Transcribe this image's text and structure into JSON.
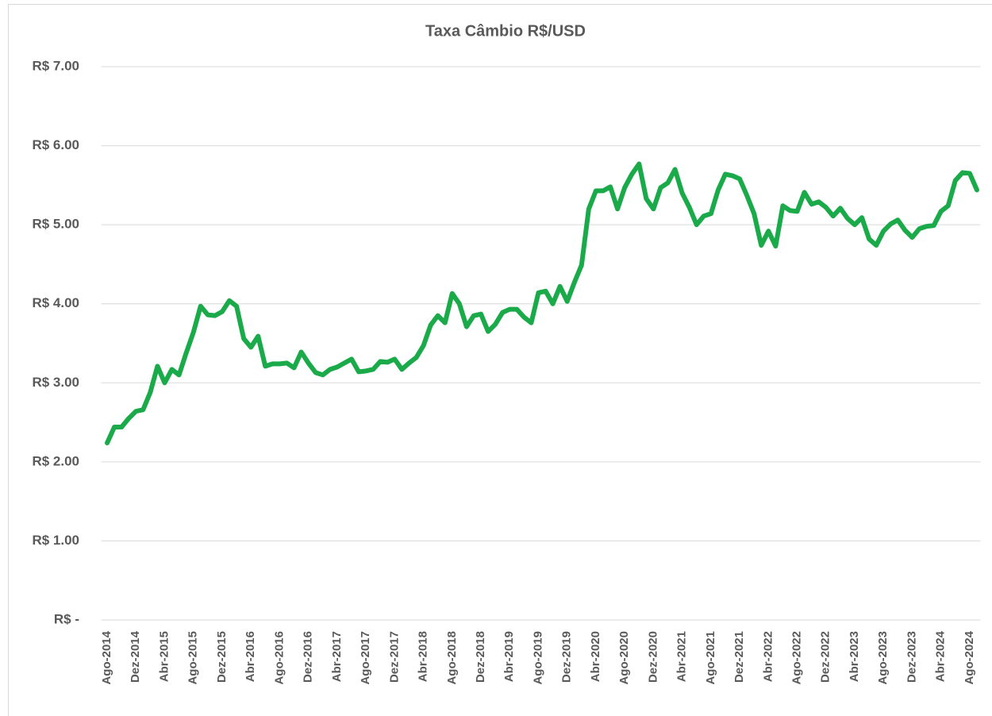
{
  "chart_data": {
    "type": "line",
    "title": "Taxa Câmbio R$/USD",
    "categories": [
      "Ago-2014",
      null,
      null,
      null,
      "Dez-2014",
      null,
      null,
      null,
      "Abr-2015",
      null,
      null,
      null,
      "Ago-2015",
      null,
      null,
      null,
      "Dez-2015",
      null,
      null,
      null,
      "Abr-2016",
      null,
      null,
      null,
      "Ago-2016",
      null,
      null,
      null,
      "Dez-2016",
      null,
      null,
      null,
      "Abr-2017",
      null,
      null,
      null,
      "Ago-2017",
      null,
      null,
      null,
      "Dez-2017",
      null,
      null,
      null,
      "Abr-2018",
      null,
      null,
      null,
      "Ago-2018",
      null,
      null,
      null,
      "Dez-2018",
      null,
      null,
      null,
      "Abr-2019",
      null,
      null,
      null,
      "Ago-2019",
      null,
      null,
      null,
      "Dez-2019",
      null,
      null,
      null,
      "Abr-2020",
      null,
      null,
      null,
      "Ago-2020",
      null,
      null,
      null,
      "Dez-2020",
      null,
      null,
      null,
      "Abr-2021",
      null,
      null,
      null,
      "Ago-2021",
      null,
      null,
      null,
      "Dez-2021",
      null,
      null,
      null,
      "Abr-2022",
      null,
      null,
      null,
      "Ago-2022",
      null,
      null,
      null,
      "Dez-2022",
      null,
      null,
      null,
      "Abr-2023",
      null,
      null,
      null,
      "Ago-2023",
      null,
      null,
      null,
      "Dez-2023",
      null,
      null,
      null,
      "Abr-2024",
      null,
      null,
      null,
      "Ago-2024",
      null
    ],
    "values": [
      2.24,
      2.44,
      2.44,
      2.55,
      2.64,
      2.66,
      2.88,
      3.21,
      3.0,
      3.17,
      3.1,
      3.38,
      3.64,
      3.97,
      3.86,
      3.85,
      3.9,
      4.04,
      3.97,
      3.56,
      3.45,
      3.59,
      3.21,
      3.24,
      3.24,
      3.25,
      3.19,
      3.39,
      3.25,
      3.13,
      3.1,
      3.17,
      3.2,
      3.25,
      3.3,
      3.14,
      3.15,
      3.17,
      3.27,
      3.26,
      3.3,
      3.17,
      3.25,
      3.32,
      3.47,
      3.73,
      3.85,
      3.76,
      4.13,
      4.0,
      3.71,
      3.85,
      3.87,
      3.65,
      3.74,
      3.89,
      3.93,
      3.93,
      3.83,
      3.76,
      4.14,
      4.16,
      4.0,
      4.22,
      4.03,
      4.27,
      4.49,
      5.2,
      5.43,
      5.43,
      5.48,
      5.2,
      5.47,
      5.64,
      5.77,
      5.33,
      5.2,
      5.47,
      5.53,
      5.7,
      5.4,
      5.22,
      5.0,
      5.11,
      5.14,
      5.44,
      5.64,
      5.62,
      5.58,
      5.37,
      5.14,
      4.74,
      4.92,
      4.73,
      5.24,
      5.18,
      5.17,
      5.41,
      5.26,
      5.29,
      5.22,
      5.11,
      5.21,
      5.08,
      5.0,
      5.09,
      4.82,
      4.74,
      4.92,
      5.01,
      5.06,
      4.93,
      4.84,
      4.95,
      4.98,
      4.99,
      5.17,
      5.24,
      5.56,
      5.66,
      5.65,
      5.44
    ],
    "color": "#1aaa4a",
    "ylim": [
      0,
      7
    ],
    "yticks": [
      {
        "value": 0,
        "label": "R$ -"
      },
      {
        "value": 1,
        "label": "R$ 1.00"
      },
      {
        "value": 2,
        "label": "R$ 2.00"
      },
      {
        "value": 3,
        "label": "R$ 3.00"
      },
      {
        "value": 4,
        "label": "R$ 4.00"
      },
      {
        "value": 5,
        "label": "R$ 5.00"
      },
      {
        "value": 6,
        "label": "R$ 6.00"
      },
      {
        "value": 7,
        "label": "R$ 7.00"
      }
    ],
    "grid": true
  }
}
